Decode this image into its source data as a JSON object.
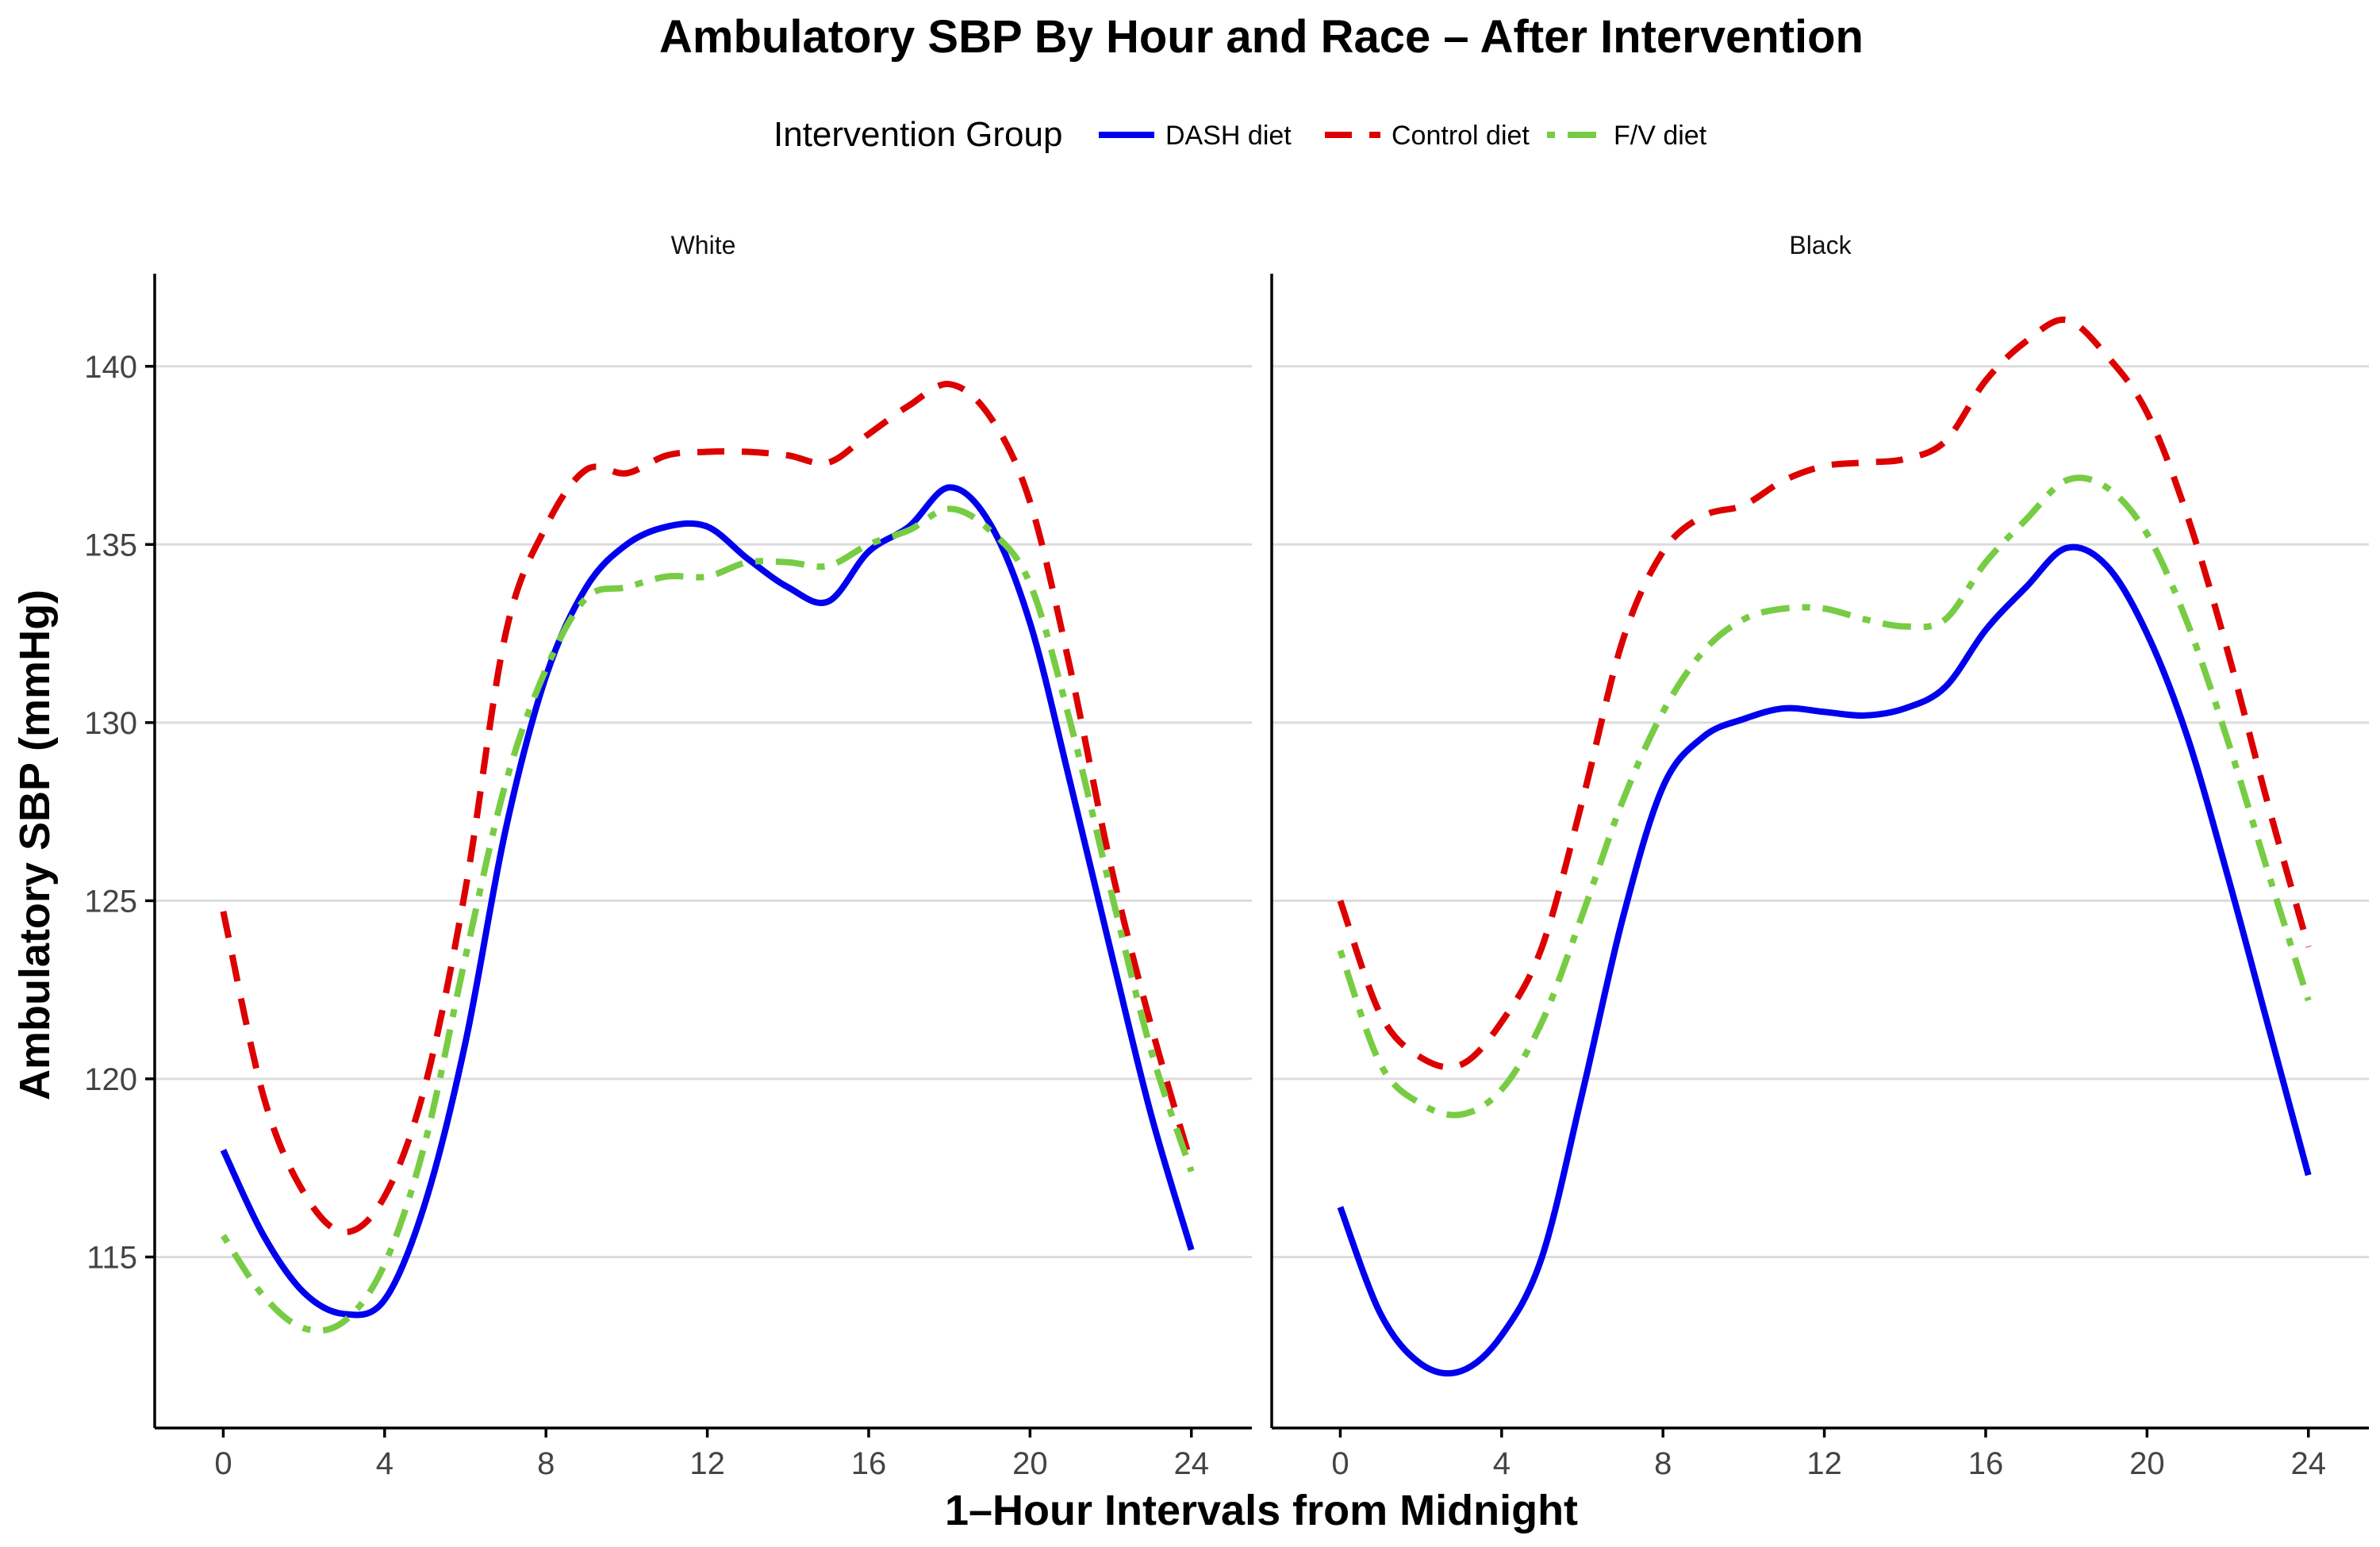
{
  "chart_data": {
    "type": "line",
    "title": "Ambulatory SBP By Hour and Race – After Intervention",
    "xlabel": "1–Hour Intervals from Midnight",
    "ylabel": "Ambulatory SBP (mmHg)",
    "xlim": [
      -1.7,
      25.5
    ],
    "ylim": [
      110.2,
      142.6
    ],
    "xticks": [
      0,
      4,
      8,
      12,
      16,
      20,
      24
    ],
    "yticks": [
      115,
      120,
      125,
      130,
      135,
      140
    ],
    "grid": "horizontal-major",
    "legend": {
      "title": "Intervention Group",
      "placement": "top",
      "entries": [
        {
          "name": "DASH diet",
          "color": "#0000ee",
          "dash": "solid"
        },
        {
          "name": "Control diet",
          "color": "#dd0000",
          "dash": "dashed"
        },
        {
          "name": "F/V diet",
          "color": "#77cc44",
          "dash": "dotdash"
        }
      ]
    },
    "panels": [
      {
        "label": "White",
        "series": [
          {
            "name": "DASH diet",
            "x": [
              0,
              1,
              2,
              3,
              4,
              5,
              6,
              7,
              8,
              9,
              10,
              11,
              12,
              13,
              14,
              15,
              16,
              17,
              18,
              19,
              20,
              21,
              22,
              23,
              24
            ],
            "values": [
              118.0,
              115.6,
              114.0,
              113.4,
              113.8,
              116.5,
              121.0,
              127.0,
              131.3,
              133.8,
              135.0,
              135.5,
              135.5,
              134.6,
              133.8,
              133.4,
              134.8,
              135.5,
              136.6,
              135.6,
              132.8,
              128.3,
              123.6,
              119.0,
              115.2
            ]
          },
          {
            "name": "Control diet",
            "x": [
              0,
              1,
              2,
              3,
              4,
              5,
              6,
              7,
              8,
              9,
              10,
              11,
              12,
              13,
              14,
              15,
              16,
              17,
              18,
              19,
              20,
              21,
              22,
              23,
              24
            ],
            "values": [
              124.7,
              119.5,
              116.8,
              115.7,
              116.7,
              119.8,
              125.3,
              132.5,
              135.5,
              137.1,
              137.0,
              137.5,
              137.6,
              137.6,
              137.5,
              137.3,
              138.1,
              138.9,
              139.5,
              138.6,
              136.2,
              131.5,
              126.0,
              121.5,
              117.6
            ]
          },
          {
            "name": "F/V diet",
            "x": [
              0,
              1,
              2,
              3,
              4,
              5,
              6,
              7,
              8,
              9,
              10,
              11,
              12,
              13,
              14,
              15,
              16,
              17,
              18,
              19,
              20,
              21,
              22,
              23,
              24
            ],
            "values": [
              115.6,
              113.9,
              113.0,
              113.2,
              114.8,
              118.2,
              123.4,
              128.3,
              131.5,
              133.5,
              133.8,
              134.1,
              134.1,
              134.5,
              134.5,
              134.4,
              135.0,
              135.4,
              136.0,
              135.4,
              133.9,
              130.0,
              125.3,
              120.8,
              117.4
            ]
          }
        ]
      },
      {
        "label": "Black",
        "series": [
          {
            "name": "DASH diet",
            "x": [
              0,
              1,
              2,
              3,
              4,
              5,
              6,
              7,
              8,
              9,
              10,
              11,
              12,
              13,
              14,
              15,
              16,
              17,
              18,
              19,
              20,
              21,
              22,
              23,
              24
            ],
            "values": [
              116.4,
              113.4,
              112.0,
              111.8,
              112.8,
              115.0,
              119.6,
              124.5,
              128.2,
              129.6,
              130.1,
              130.4,
              130.3,
              130.2,
              130.4,
              131.0,
              132.6,
              133.8,
              134.9,
              134.4,
              132.5,
              129.6,
              125.7,
              121.5,
              117.3
            ]
          },
          {
            "name": "Control diet",
            "x": [
              0,
              1,
              2,
              3,
              4,
              5,
              6,
              7,
              8,
              9,
              10,
              11,
              12,
              13,
              14,
              15,
              16,
              17,
              18,
              19,
              20,
              21,
              22,
              23,
              24
            ],
            "values": [
              125.0,
              121.8,
              120.6,
              120.4,
              121.6,
              123.7,
              127.8,
              132.3,
              134.8,
              135.8,
              136.1,
              136.8,
              137.2,
              137.3,
              137.4,
              137.9,
              139.6,
              140.7,
              141.3,
              140.3,
              138.7,
              135.8,
              132.0,
              127.7,
              123.7
            ]
          },
          {
            "name": "F/V diet",
            "x": [
              0,
              1,
              2,
              3,
              4,
              5,
              6,
              7,
              8,
              9,
              10,
              11,
              12,
              13,
              14,
              15,
              16,
              17,
              18,
              19,
              20,
              21,
              22,
              23,
              24
            ],
            "values": [
              123.6,
              120.4,
              119.3,
              119.0,
              119.7,
              121.6,
              124.6,
              127.8,
              130.3,
              132.0,
              132.9,
              133.2,
              133.2,
              132.9,
              132.7,
              132.9,
              134.5,
              135.7,
              136.8,
              136.6,
              135.3,
              132.8,
              129.5,
              125.8,
              122.2
            ]
          }
        ]
      }
    ]
  }
}
